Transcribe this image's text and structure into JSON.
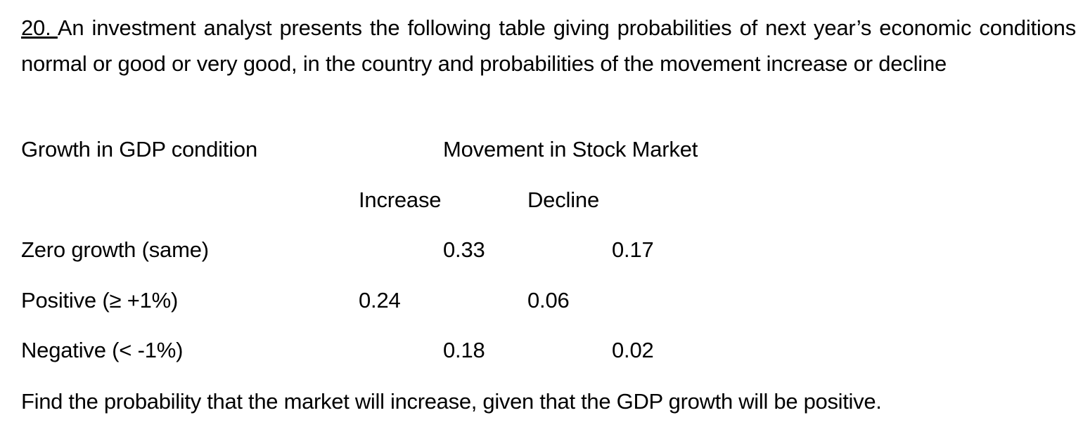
{
  "question": {
    "number": "20. ",
    "text": "An investment analyst presents the following table giving probabilities of next year’s economic conditions normal or good or very good, in the country and probabilities of the movement increase or decline"
  },
  "table": {
    "row_header": "Growth in GDP condition",
    "group_header": "Movement in Stock Market",
    "columns": [
      "Increase",
      "Decline"
    ],
    "rows": [
      {
        "label": "Zero growth (same)",
        "increase": "0.33",
        "decline": "0.17"
      },
      {
        "label": "Positive (≥ +1%)",
        "increase": "0.24",
        "decline": "0.06"
      },
      {
        "label": "Negative (< -1%)",
        "increase": "0.18",
        "decline": "0.02"
      }
    ]
  },
  "prompt": "Find the probability that the market will increase, given that the GDP growth will be positive."
}
